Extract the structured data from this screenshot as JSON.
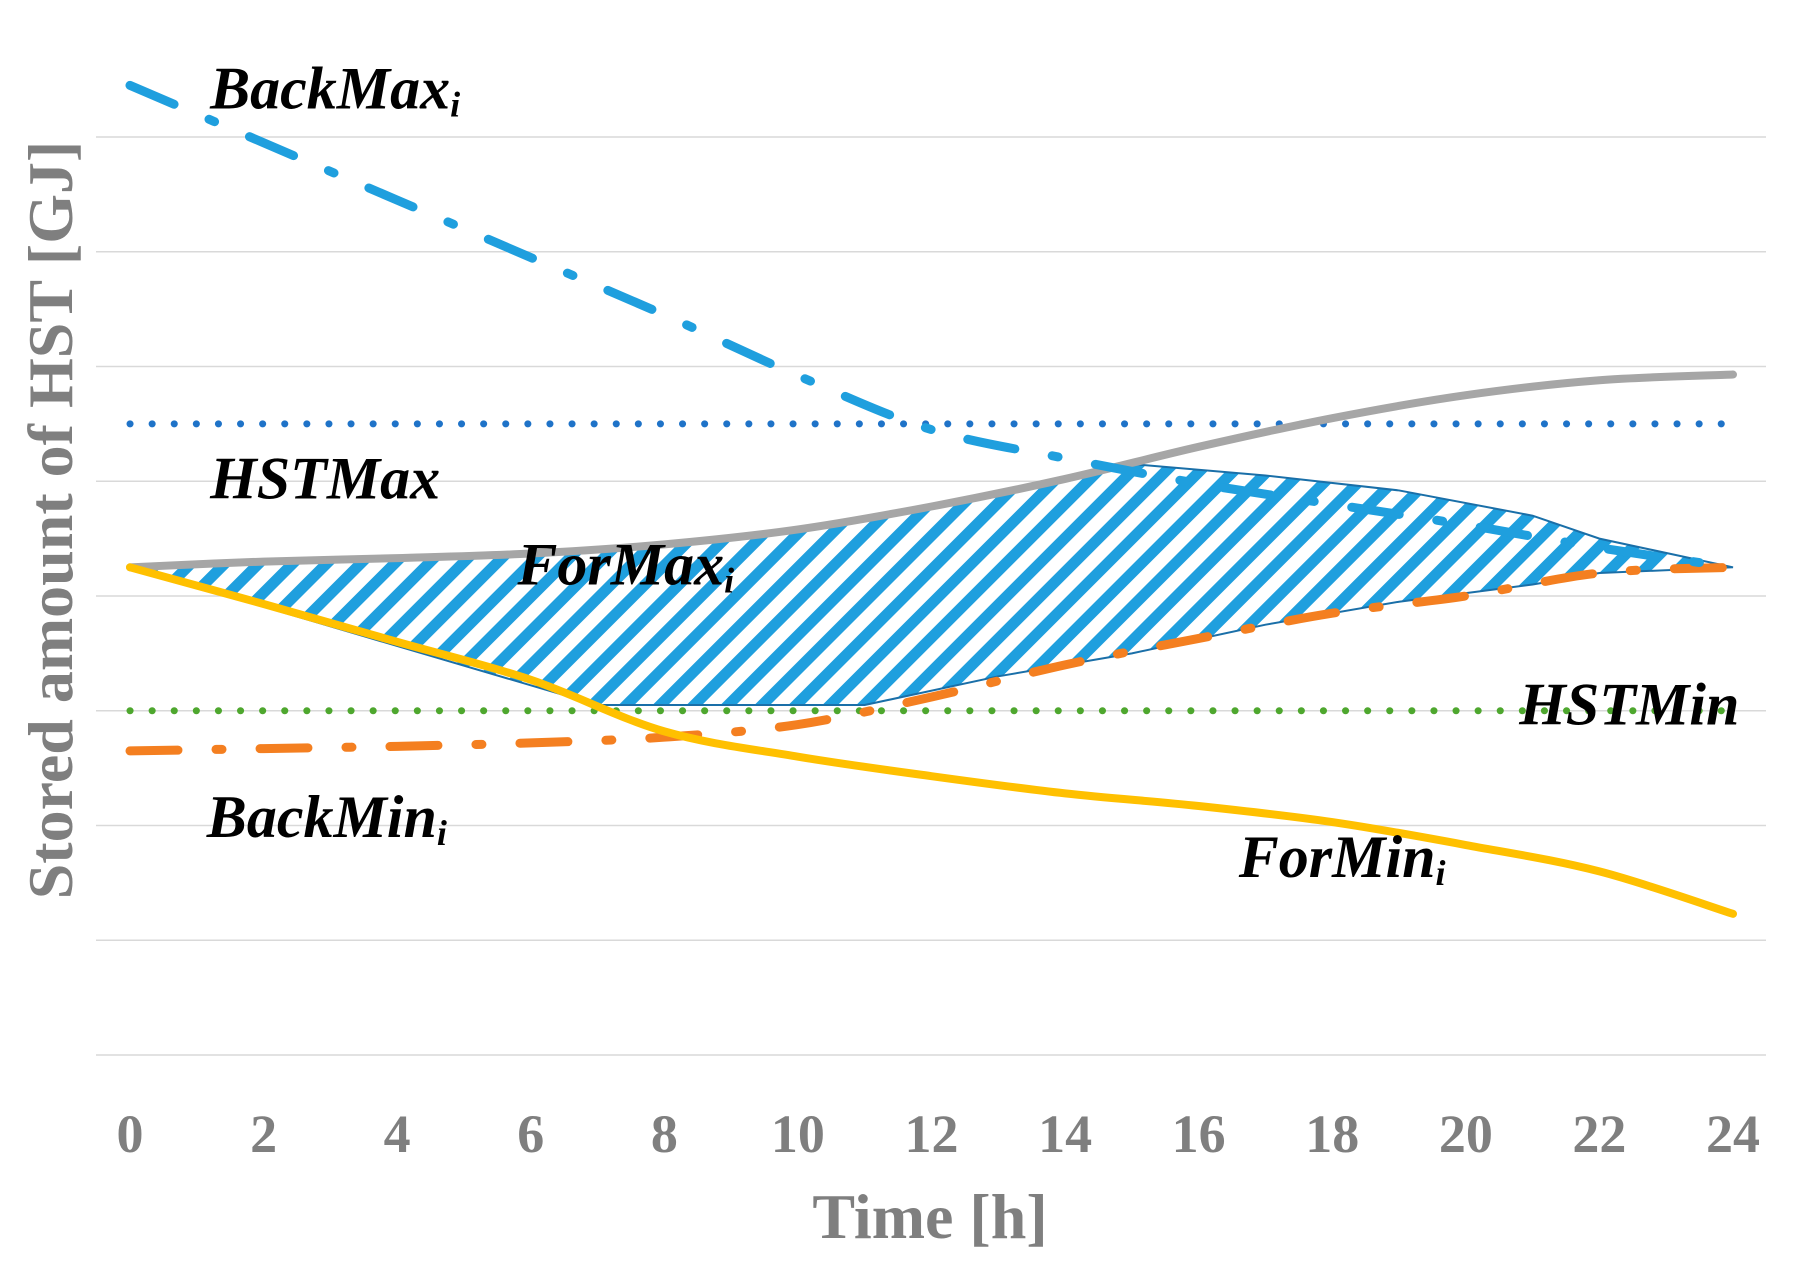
{
  "chart_data": {
    "type": "line",
    "title": "",
    "xlabel": "Time [h]",
    "ylabel": "Stored amount of HST [GJ]",
    "xlim": [
      0,
      24
    ],
    "ylim": [
      0,
      8
    ],
    "x_ticks": [
      "0",
      "2",
      "4",
      "6",
      "8",
      "10",
      "12",
      "14",
      "16",
      "18",
      "20",
      "22",
      "24"
    ],
    "y_gridlines": [
      0,
      1,
      2,
      3,
      4,
      5,
      6,
      7,
      8
    ],
    "y_tick_labels_shown": false,
    "colors": {
      "back_max": "#1f9fde",
      "for_max": "#a6a6a6",
      "hst_max": "#1f73c8",
      "hst_min": "#4ea72e",
      "back_min": "#f47f20",
      "for_min": "#ffc000",
      "feasible_hatch": "#1f9fde",
      "feasible_outline": "#1a6fa8",
      "grid": "#d9d9d9"
    },
    "series": [
      {
        "name": "BackMax_i",
        "style": "dash-dot",
        "color": "back_max",
        "x": [
          0,
          2,
          4,
          6,
          8,
          10,
          12,
          14,
          16,
          18,
          20,
          22,
          24
        ],
        "y": [
          8.45,
          7.95,
          7.45,
          6.95,
          6.45,
          5.92,
          5.45,
          5.2,
          4.98,
          4.8,
          4.62,
          4.42,
          4.25
        ]
      },
      {
        "name": "ForMax_i",
        "style": "solid",
        "color": "for_max",
        "x": [
          0,
          2,
          4,
          6,
          8,
          10,
          12,
          14,
          16,
          18,
          20,
          22,
          24
        ],
        "y": [
          4.25,
          4.3,
          4.33,
          4.37,
          4.45,
          4.58,
          4.78,
          5.02,
          5.3,
          5.55,
          5.75,
          5.88,
          5.93
        ]
      },
      {
        "name": "HSTMax",
        "style": "dotted",
        "color": "hst_max",
        "x": [
          0,
          24
        ],
        "y": [
          5.5,
          5.5
        ]
      },
      {
        "name": "HSTMin",
        "style": "dotted",
        "color": "hst_min",
        "x": [
          0,
          24
        ],
        "y": [
          3.0,
          3.0
        ]
      },
      {
        "name": "BackMin_i",
        "style": "dash-dot",
        "color": "back_min",
        "x": [
          0,
          2,
          4,
          6,
          8,
          10,
          12,
          14,
          16,
          18,
          20,
          22,
          24
        ],
        "y": [
          2.65,
          2.67,
          2.69,
          2.72,
          2.77,
          2.88,
          3.12,
          3.4,
          3.63,
          3.85,
          4.0,
          4.2,
          4.25
        ]
      },
      {
        "name": "ForMin_i",
        "style": "solid",
        "color": "for_min",
        "x": [
          0,
          2,
          4,
          6,
          8,
          10,
          12,
          14,
          16,
          18,
          20,
          22,
          24
        ],
        "y": [
          4.25,
          3.93,
          3.6,
          3.27,
          2.82,
          2.6,
          2.43,
          2.28,
          2.17,
          2.03,
          1.83,
          1.6,
          1.23
        ]
      }
    ],
    "feasible_region": {
      "name": "Feasible region (hatched)",
      "upper_x": [
        0,
        4,
        8,
        11,
        13,
        15,
        17,
        19,
        21,
        22,
        24
      ],
      "upper_y": [
        4.25,
        4.33,
        4.45,
        4.65,
        4.87,
        5.15,
        5.05,
        4.92,
        4.7,
        4.5,
        4.25
      ],
      "lower_x": [
        0,
        7,
        11,
        13,
        15,
        17,
        19,
        21,
        22,
        24
      ],
      "lower_y": [
        4.25,
        3.05,
        3.05,
        3.3,
        3.5,
        3.75,
        3.95,
        4.1,
        4.2,
        4.25
      ]
    },
    "annotations": [
      {
        "name": "BackMax",
        "base": "BackMax",
        "sub": "i",
        "x": 1.2,
        "y": 8.25
      },
      {
        "name": "HSTMax",
        "base": "HSTMax",
        "sub": "",
        "x": 1.2,
        "y": 4.85
      },
      {
        "name": "ForMax",
        "base": "ForMax",
        "sub": "i",
        "x": 5.8,
        "y": 4.1
      },
      {
        "name": "HSTMin",
        "base": "HSTMin",
        "sub": "",
        "x": 20.8,
        "y": 2.88
      },
      {
        "name": "BackMin",
        "base": "BackMin",
        "sub": "i",
        "x": 1.15,
        "y": 1.9
      },
      {
        "name": "ForMin",
        "base": "ForMin",
        "sub": "i",
        "x": 16.6,
        "y": 1.55
      }
    ]
  }
}
